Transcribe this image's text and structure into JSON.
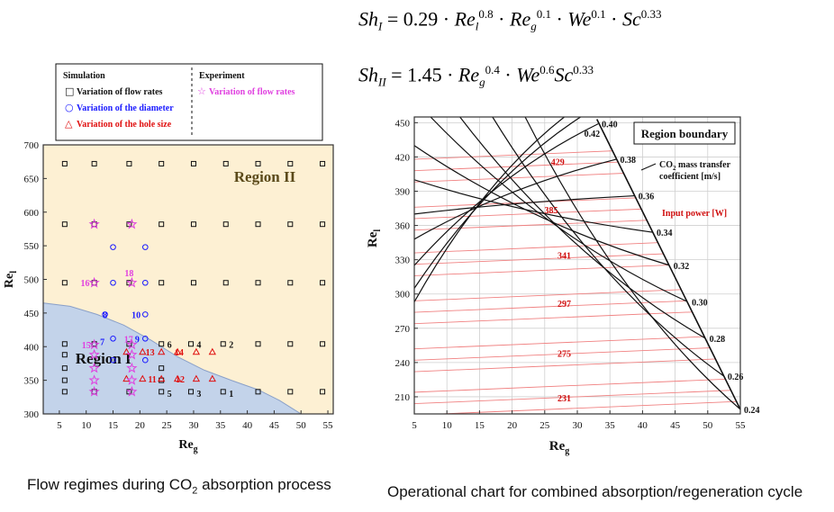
{
  "equations": {
    "sh1": {
      "lhs": "Sh",
      "lhs_sub": "I",
      "eq": " =  0.29",
      "dot": "·",
      "t1": "Re",
      "t1_sub": "l",
      "t1_sup": "0.8",
      "t2": "Re",
      "t2_sub": "g",
      "t2_sup": "0.1",
      "t3": "We",
      "t3_sup": "0.1",
      "t4": "Sc",
      "t4_sup": "0.33"
    },
    "sh2": {
      "lhs": "Sh",
      "lhs_sub": "II",
      "eq": " =  1.45",
      "dot": "·",
      "t1": "Re",
      "t1_sub": "g",
      "t1_sup": "0.4",
      "t2": "We",
      "t2_sup": "0.6",
      "t3": "Sc",
      "t3_sup": "0.33"
    }
  },
  "captions": {
    "left_pre": "Flow regimes during CO",
    "left_sub": "2",
    "left_post": " absorption process",
    "right": "Operational chart for combined absorption/regeneration cycle"
  },
  "colors": {
    "region1": "#c3d3ea",
    "region2": "#fdf0d3",
    "sim_flow": "#111111",
    "sim_diam": "#1a1aff",
    "sim_hole": "#e01010",
    "exp": "#e040e0",
    "k_line": "#111111",
    "power_line": "#f08080",
    "power_label": "#d01010",
    "grid": "#cfcfcf"
  },
  "chart_data": [
    {
      "type": "scatter",
      "title": "Flow regimes",
      "xlabel": "Re",
      "xlabel_sub": "g",
      "ylabel": "Re",
      "ylabel_sub": "l",
      "xlim": [
        2,
        56
      ],
      "ylim": [
        300,
        700
      ],
      "xticks": [
        5,
        10,
        15,
        20,
        25,
        30,
        35,
        40,
        45,
        50,
        55
      ],
      "yticks": [
        300,
        350,
        400,
        450,
        500,
        550,
        600,
        650,
        700
      ],
      "regions": [
        {
          "name": "Region I",
          "label_at": [
            8,
            375
          ],
          "boundary": [
            [
              2,
              465
            ],
            [
              7,
              460
            ],
            [
              12,
              448
            ],
            [
              17,
              432
            ],
            [
              22,
              410
            ],
            [
              27,
              385
            ],
            [
              32,
              365
            ],
            [
              37,
              350
            ],
            [
              42,
              336
            ],
            [
              46,
              320
            ],
            [
              49,
              305
            ],
            [
              50,
              300
            ]
          ]
        },
        {
          "name": "Region II",
          "label_at": [
            49,
            645
          ]
        }
      ],
      "legend": {
        "title_sim": "Simulation",
        "title_exp": "Experiment",
        "items": [
          {
            "symbol": "□",
            "label": "Variation of flow rates",
            "series": "sim_flow"
          },
          {
            "symbol": "○",
            "label": "Variation of the diameter",
            "series": "sim_diam"
          },
          {
            "symbol": "△",
            "label": "Variation of the hole size",
            "series": "sim_hole"
          },
          {
            "symbol": "☆",
            "label": "Variation of flow rates",
            "series": "exp"
          }
        ]
      },
      "series": [
        {
          "name": "sim_flow",
          "marker": "square",
          "points": [
            [
              6,
              672
            ],
            [
              11.5,
              672
            ],
            [
              18,
              672
            ],
            [
              24,
              672
            ],
            [
              30,
              672
            ],
            [
              36,
              672
            ],
            [
              42,
              672
            ],
            [
              48,
              672
            ],
            [
              54,
              672
            ],
            [
              6,
              582
            ],
            [
              11.5,
              582
            ],
            [
              18,
              582
            ],
            [
              24,
              582
            ],
            [
              30,
              582
            ],
            [
              36,
              582
            ],
            [
              42,
              582
            ],
            [
              48,
              582
            ],
            [
              54,
              582
            ],
            [
              6,
              495
            ],
            [
              11.5,
              495
            ],
            [
              18,
              495
            ],
            [
              24,
              495
            ],
            [
              30,
              495
            ],
            [
              36,
              495
            ],
            [
              42,
              495
            ],
            [
              48,
              495
            ],
            [
              54,
              495
            ],
            [
              6,
              404
            ],
            [
              11.5,
              404
            ],
            [
              18,
              404
            ],
            [
              24,
              404
            ],
            [
              29.5,
              404
            ],
            [
              35.5,
              404
            ],
            [
              42,
              404
            ],
            [
              48,
              404
            ],
            [
              54,
              404
            ],
            [
              6,
              333
            ],
            [
              11.5,
              333
            ],
            [
              18,
              333
            ],
            [
              24,
              333
            ],
            [
              29.5,
              333
            ],
            [
              35.5,
              333
            ],
            [
              42,
              333
            ],
            [
              48,
              333
            ],
            [
              54,
              333
            ],
            [
              6,
              388
            ],
            [
              6,
              368
            ],
            [
              6,
              350
            ],
            [
              24,
              368
            ],
            [
              24,
              350
            ]
          ]
        },
        {
          "name": "sim_diam",
          "marker": "circle",
          "points": [
            [
              15,
              548
            ],
            [
              21,
              548
            ],
            [
              15,
              495
            ],
            [
              21,
              495
            ],
            [
              13.5,
              448
            ],
            [
              21,
              448
            ],
            [
              15,
              412
            ],
            [
              21,
              412
            ],
            [
              15,
              380
            ],
            [
              21,
              380
            ]
          ]
        },
        {
          "name": "sim_hole",
          "marker": "triangle",
          "points": [
            [
              17.5,
              392
            ],
            [
              20.5,
              392
            ],
            [
              24,
              392
            ],
            [
              27,
              392
            ],
            [
              30.5,
              392
            ],
            [
              33.5,
              392
            ],
            [
              17.5,
              352
            ],
            [
              20.5,
              352
            ],
            [
              24,
              352
            ],
            [
              27,
              352
            ],
            [
              30.5,
              352
            ],
            [
              33.5,
              352
            ]
          ]
        },
        {
          "name": "exp",
          "marker": "star",
          "points": [
            [
              11.5,
              582
            ],
            [
              18.5,
              582
            ],
            [
              11.5,
              495
            ],
            [
              18.5,
              495
            ],
            [
              11.5,
              403
            ],
            [
              18.5,
              403
            ],
            [
              11.5,
              388
            ],
            [
              11.5,
              368
            ],
            [
              11.5,
              350
            ],
            [
              11.5,
              333
            ],
            [
              18.5,
              388
            ],
            [
              18.5,
              368
            ],
            [
              18.5,
              350
            ],
            [
              18.5,
              333
            ]
          ]
        }
      ],
      "point_labels": [
        {
          "text": "16",
          "at": [
            9.8,
            495
          ],
          "color": "#e040e0"
        },
        {
          "text": "18",
          "at": [
            18,
            510
          ],
          "color": "#e040e0"
        },
        {
          "text": "8",
          "at": [
            13.5,
            448
          ],
          "color": "#1a1aff"
        },
        {
          "text": "10",
          "at": [
            19.3,
            448
          ],
          "color": "#1a1aff"
        },
        {
          "text": "15",
          "at": [
            10,
            403
          ],
          "color": "#e040e0"
        },
        {
          "text": "7",
          "at": [
            13,
            408
          ],
          "color": "#1a1aff"
        },
        {
          "text": "17",
          "at": [
            17.9,
            412
          ],
          "color": "#e040e0"
        },
        {
          "text": "9",
          "at": [
            19.5,
            412
          ],
          "color": "#1a1aff"
        },
        {
          "text": "13",
          "at": [
            21.9,
            392
          ],
          "color": "#e01010"
        },
        {
          "text": "14",
          "at": [
            27.3,
            392
          ],
          "color": "#e01010"
        },
        {
          "text": "11",
          "at": [
            22.3,
            352
          ],
          "color": "#e01010"
        },
        {
          "text": "12",
          "at": [
            27.5,
            352
          ],
          "color": "#e01010"
        },
        {
          "text": "6",
          "at": [
            25.5,
            404
          ],
          "color": "#111111"
        },
        {
          "text": "4",
          "at": [
            31,
            404
          ],
          "color": "#111111"
        },
        {
          "text": "2",
          "at": [
            37,
            404
          ],
          "color": "#111111"
        },
        {
          "text": "5",
          "at": [
            25.5,
            331
          ],
          "color": "#111111"
        },
        {
          "text": "3",
          "at": [
            31,
            331
          ],
          "color": "#111111"
        },
        {
          "text": "1",
          "at": [
            37,
            331
          ],
          "color": "#111111"
        }
      ]
    },
    {
      "type": "line",
      "title": "Operational chart",
      "xlabel": "Re",
      "xlabel_sub": "g",
      "ylabel": "Re",
      "ylabel_sub": "l",
      "xlim": [
        5,
        55
      ],
      "ylim": [
        195,
        455
      ],
      "xticks": [
        5,
        10,
        15,
        20,
        25,
        30,
        35,
        40,
        45,
        50,
        55
      ],
      "yticks": [
        210,
        240,
        270,
        300,
        330,
        360,
        390,
        420,
        450
      ],
      "region_boundary": {
        "label": "Region boundary",
        "points": [
          [
            33,
            453
          ],
          [
            55,
            199
          ]
        ]
      },
      "k_title_pre": "CO",
      "k_title_sub": "2",
      "k_title_post": " mass transfer",
      "k_title_line2": "coefficient [m/s]",
      "power_title": "Input power [W]",
      "mass_transfer_lines": [
        {
          "k": "0.24",
          "start": [
            22,
            455
          ],
          "end": [
            55,
            199
          ]
        },
        {
          "k": "0.26",
          "start": [
            17,
            455
          ],
          "end": [
            52.5,
            228
          ]
        },
        {
          "k": "0.28",
          "start": [
            12,
            455
          ],
          "end": [
            49.7,
            261
          ]
        },
        {
          "k": "0.30",
          "start": [
            7.5,
            455
          ],
          "end": [
            47,
            293
          ]
        },
        {
          "k": "0.32",
          "start": [
            5,
            430
          ],
          "end": [
            44.2,
            325
          ]
        },
        {
          "k": "0.34",
          "start": [
            5,
            400
          ],
          "end": [
            41.6,
            354
          ]
        },
        {
          "k": "0.36",
          "start": [
            5,
            370
          ],
          "end": [
            38.8,
            386
          ]
        },
        {
          "k": "0.38",
          "start": [
            5,
            348
          ],
          "end": [
            36,
            418
          ]
        },
        {
          "k": "0.40",
          "start": [
            5,
            325
          ],
          "end": [
            33.2,
            449
          ]
        },
        {
          "k": "0.42",
          "start": [
            5,
            305
          ],
          "end": [
            30.5,
            455
          ]
        },
        {
          "k": "",
          "start": [
            5,
            293
          ],
          "end": [
            28,
            455
          ]
        }
      ],
      "power_lines": [
        {
          "power": "231",
          "at": [
            28,
            209
          ]
        },
        {
          "power": "275",
          "at": [
            28,
            248
          ]
        },
        {
          "power": "297",
          "at": [
            28,
            292
          ]
        },
        {
          "power": "341",
          "at": [
            28,
            334
          ]
        },
        {
          "power": "385",
          "at": [
            26,
            374
          ]
        },
        {
          "power": "429",
          "at": [
            27,
            416
          ]
        }
      ]
    }
  ]
}
